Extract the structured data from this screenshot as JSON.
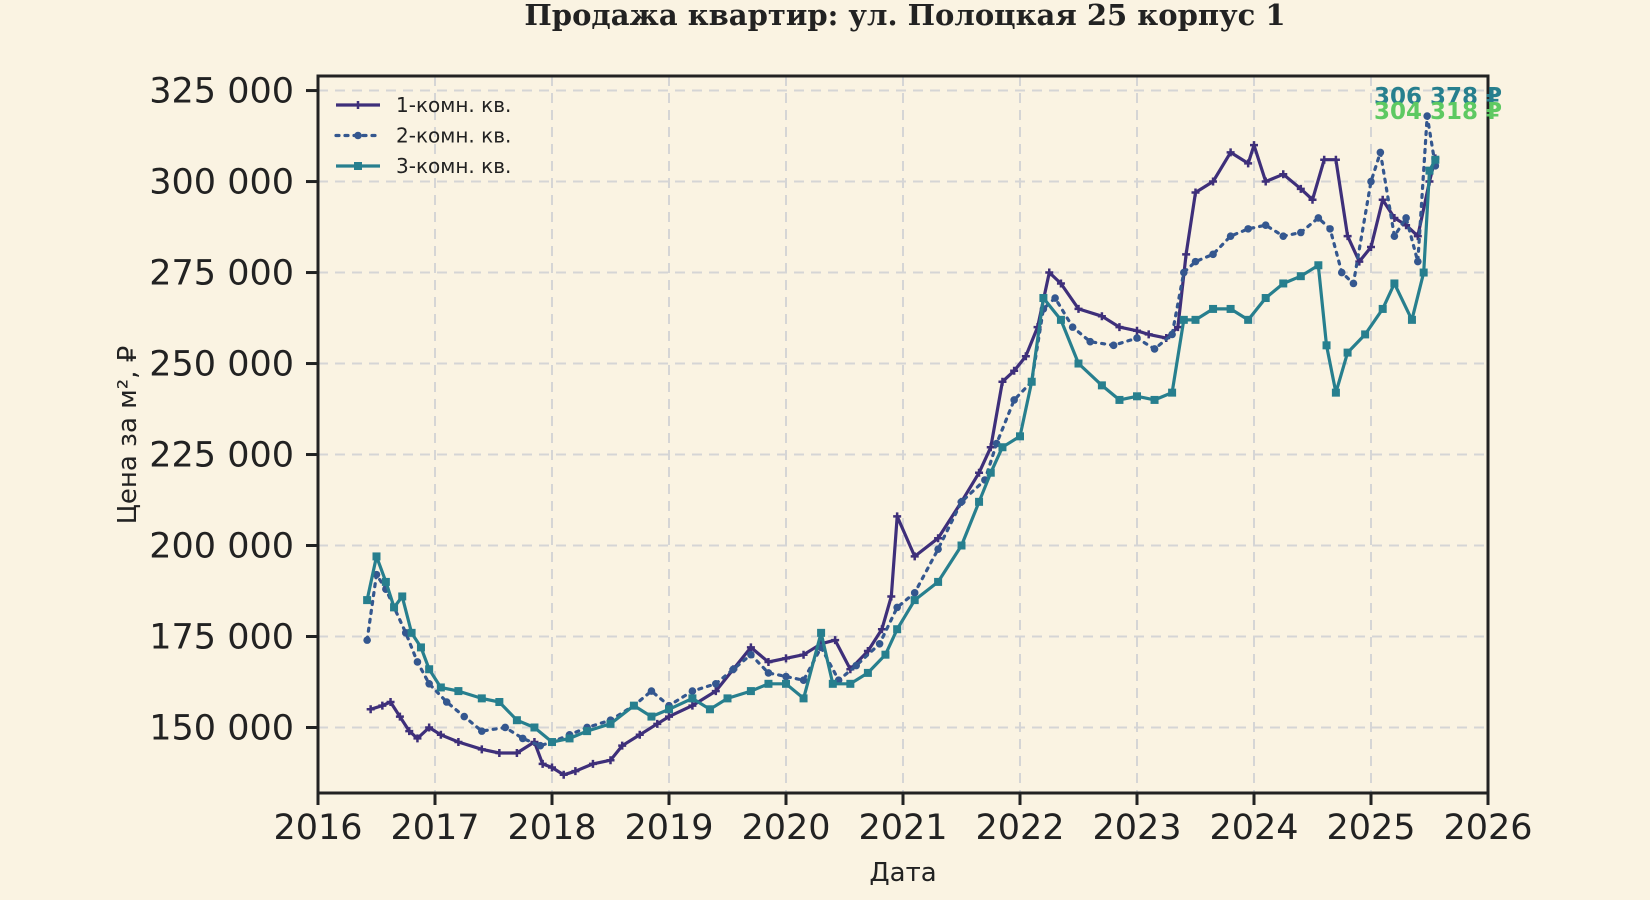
{
  "chart_data": {
    "type": "line",
    "title": "Продажа квартир: ул. Полоцкая 25 корпус 1",
    "xlabel": "Дата",
    "ylabel": "Цена за м², ₽",
    "xlim": [
      2016,
      2026
    ],
    "ylim": [
      132000,
      329000
    ],
    "xticks": [
      2016,
      2017,
      2018,
      2019,
      2020,
      2021,
      2022,
      2023,
      2024,
      2025,
      2026
    ],
    "xtick_labels": [
      "2016",
      "2017",
      "2018",
      "2019",
      "2020",
      "2021",
      "2022",
      "2023",
      "2024",
      "2025",
      "2026"
    ],
    "yticks": [
      150000,
      175000,
      200000,
      225000,
      250000,
      275000,
      300000,
      325000
    ],
    "ytick_labels": [
      "150 000",
      "175 000",
      "200 000",
      "225 000",
      "250 000",
      "275 000",
      "300 000",
      "325 000"
    ],
    "grid": true,
    "legend_position": "top-left",
    "series": [
      {
        "name": "1-комн. кв.",
        "color": "#3e2f7a",
        "style": "solid",
        "marker": "plus",
        "x": [
          2016.45,
          2016.55,
          2016.62,
          2016.7,
          2016.78,
          2016.85,
          2016.95,
          2017.05,
          2017.2,
          2017.4,
          2017.55,
          2017.7,
          2017.85,
          2017.92,
          2018.0,
          2018.1,
          2018.2,
          2018.35,
          2018.5,
          2018.6,
          2018.75,
          2018.9,
          2019.0,
          2019.2,
          2019.4,
          2019.55,
          2019.7,
          2019.85,
          2020.0,
          2020.15,
          2020.3,
          2020.42,
          2020.55,
          2020.7,
          2020.82,
          2020.9,
          2020.95,
          2021.1,
          2021.3,
          2021.5,
          2021.65,
          2021.75,
          2021.85,
          2021.95,
          2022.05,
          2022.15,
          2022.25,
          2022.35,
          2022.5,
          2022.7,
          2022.85,
          2023.0,
          2023.1,
          2023.25,
          2023.35,
          2023.42,
          2023.5,
          2023.65,
          2023.8,
          2023.95,
          2024.0,
          2024.1,
          2024.25,
          2024.4,
          2024.5,
          2024.6,
          2024.7,
          2024.8,
          2024.9,
          2025.0,
          2025.1,
          2025.2,
          2025.3,
          2025.4,
          2025.5,
          2025.55
        ],
        "y": [
          155000,
          156000,
          157000,
          153000,
          149000,
          147000,
          150000,
          148000,
          146000,
          144000,
          143000,
          143000,
          146000,
          140000,
          139000,
          137000,
          138000,
          140000,
          141000,
          145000,
          148000,
          151000,
          153000,
          156000,
          160000,
          166000,
          172000,
          168000,
          169000,
          170000,
          173000,
          174000,
          166000,
          171000,
          177000,
          186000,
          208000,
          197000,
          202000,
          212000,
          220000,
          227000,
          245000,
          248000,
          252000,
          260000,
          275000,
          272000,
          265000,
          263000,
          260000,
          259000,
          258000,
          257000,
          260000,
          280000,
          297000,
          300000,
          308000,
          305000,
          310000,
          300000,
          302000,
          298000,
          295000,
          306000,
          306000,
          285000,
          278000,
          282000,
          295000,
          290000,
          288000,
          285000,
          300000,
          306378
        ]
      },
      {
        "name": "2-комн. кв.",
        "color": "#34578f",
        "style": "dotted",
        "marker": "pentagon",
        "x": [
          2016.42,
          2016.5,
          2016.58,
          2016.65,
          2016.75,
          2016.85,
          2016.95,
          2017.1,
          2017.25,
          2017.4,
          2017.6,
          2017.75,
          2017.9,
          2018.0,
          2018.15,
          2018.3,
          2018.5,
          2018.7,
          2018.85,
          2019.0,
          2019.2,
          2019.4,
          2019.55,
          2019.7,
          2019.85,
          2020.0,
          2020.15,
          2020.3,
          2020.45,
          2020.6,
          2020.8,
          2020.95,
          2021.1,
          2021.3,
          2021.5,
          2021.7,
          2021.8,
          2021.95,
          2022.1,
          2022.2,
          2022.3,
          2022.45,
          2022.6,
          2022.8,
          2023.0,
          2023.15,
          2023.3,
          2023.4,
          2023.5,
          2023.65,
          2023.8,
          2023.95,
          2024.1,
          2024.25,
          2024.4,
          2024.55,
          2024.65,
          2024.75,
          2024.85,
          2025.0,
          2025.08,
          2025.2,
          2025.3,
          2025.4,
          2025.48,
          2025.55
        ],
        "y": [
          174000,
          192000,
          188000,
          183000,
          176000,
          168000,
          162000,
          157000,
          153000,
          149000,
          150000,
          147000,
          145000,
          146000,
          148000,
          150000,
          152000,
          156000,
          160000,
          156000,
          160000,
          162000,
          166000,
          170000,
          165000,
          164000,
          163000,
          172000,
          163000,
          167000,
          173000,
          183000,
          187000,
          199000,
          212000,
          218000,
          228000,
          240000,
          245000,
          265000,
          268000,
          260000,
          256000,
          255000,
          257000,
          254000,
          258000,
          275000,
          278000,
          280000,
          285000,
          287000,
          288000,
          285000,
          286000,
          290000,
          287000,
          275000,
          272000,
          300000,
          308000,
          285000,
          290000,
          278000,
          318000,
          304318
        ]
      },
      {
        "name": "3-комн. кв.",
        "color": "#277f8e",
        "style": "solid",
        "marker": "square",
        "x": [
          2016.42,
          2016.5,
          2016.58,
          2016.65,
          2016.72,
          2016.8,
          2016.88,
          2016.95,
          2017.05,
          2017.2,
          2017.4,
          2017.55,
          2017.7,
          2017.85,
          2018.0,
          2018.15,
          2018.3,
          2018.5,
          2018.7,
          2018.85,
          2019.0,
          2019.2,
          2019.35,
          2019.5,
          2019.7,
          2019.85,
          2020.0,
          2020.15,
          2020.3,
          2020.4,
          2020.55,
          2020.7,
          2020.85,
          2020.95,
          2021.1,
          2021.3,
          2021.5,
          2021.65,
          2021.75,
          2021.85,
          2022.0,
          2022.1,
          2022.2,
          2022.35,
          2022.5,
          2022.7,
          2022.85,
          2023.0,
          2023.15,
          2023.3,
          2023.4,
          2023.5,
          2023.65,
          2023.8,
          2023.95,
          2024.1,
          2024.25,
          2024.4,
          2024.55,
          2024.62,
          2024.7,
          2024.8,
          2024.95,
          2025.1,
          2025.2,
          2025.35,
          2025.45,
          2025.5,
          2025.55
        ],
        "y": [
          185000,
          197000,
          190000,
          183000,
          186000,
          176000,
          172000,
          166000,
          161000,
          160000,
          158000,
          157000,
          152000,
          150000,
          146000,
          147000,
          149000,
          151000,
          156000,
          153000,
          155000,
          158000,
          155000,
          158000,
          160000,
          162000,
          162000,
          158000,
          176000,
          162000,
          162000,
          165000,
          170000,
          177000,
          185000,
          190000,
          200000,
          212000,
          220000,
          227000,
          230000,
          245000,
          268000,
          262000,
          250000,
          244000,
          240000,
          241000,
          240000,
          242000,
          262000,
          262000,
          265000,
          265000,
          262000,
          268000,
          272000,
          274000,
          277000,
          255000,
          242000,
          253000,
          258000,
          265000,
          272000,
          262000,
          275000,
          303000,
          306000
        ]
      }
    ],
    "annotations": [
      {
        "text": "306 378 ₽",
        "color": "#277f8e",
        "series": "1-комн. кв."
      },
      {
        "text": "304 318 ₽",
        "color": "#5ec962",
        "series": "2-комн. кв."
      }
    ]
  }
}
